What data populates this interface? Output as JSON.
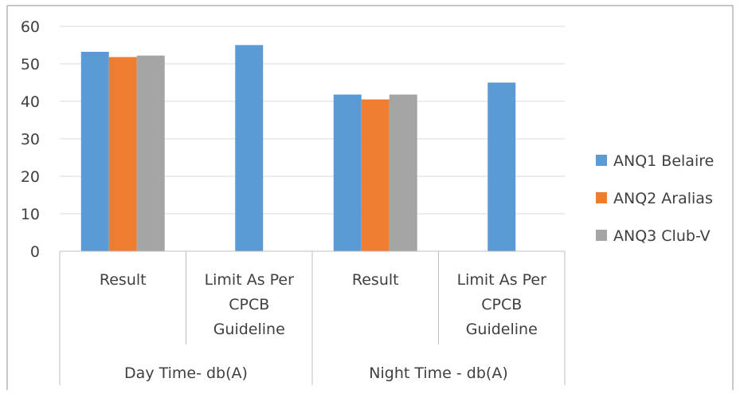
{
  "chart_data": {
    "type": "bar",
    "title": "",
    "xlabel": "",
    "ylabel": "",
    "ylim": [
      0,
      60
    ],
    "yticks": [
      "0",
      "10",
      "20",
      "30",
      "40",
      "50",
      "60"
    ],
    "groups": [
      {
        "label": "Day Time- db(A)",
        "categories": [
          "Result",
          "Limit As Per CPCB Guideline"
        ]
      },
      {
        "label": "Night Time - db(A)",
        "categories": [
          "Result",
          "Limit As Per CPCB Guideline"
        ]
      }
    ],
    "categories": [
      "Result",
      "Limit As Per CPCB Guideline",
      "Result",
      "Limit As Per CPCB Guideline"
    ],
    "category_lines": [
      [
        "Result"
      ],
      [
        "Limit As Per",
        "CPCB",
        "Guideline"
      ],
      [
        "Result"
      ],
      [
        "Limit As Per",
        "CPCB",
        "Guideline"
      ]
    ],
    "series": [
      {
        "name": "ANQ1 Belaire",
        "color": "#5B9BD5",
        "values": [
          53.2,
          55,
          41.8,
          45
        ]
      },
      {
        "name": "ANQ2 Aralias",
        "color": "#ED7D31",
        "values": [
          51.8,
          null,
          40.5,
          null
        ]
      },
      {
        "name": "ANQ3 Club-V",
        "color": "#A5A5A5",
        "values": [
          52.2,
          null,
          41.8,
          null
        ]
      }
    ],
    "grid": true,
    "legend_position": "right"
  }
}
